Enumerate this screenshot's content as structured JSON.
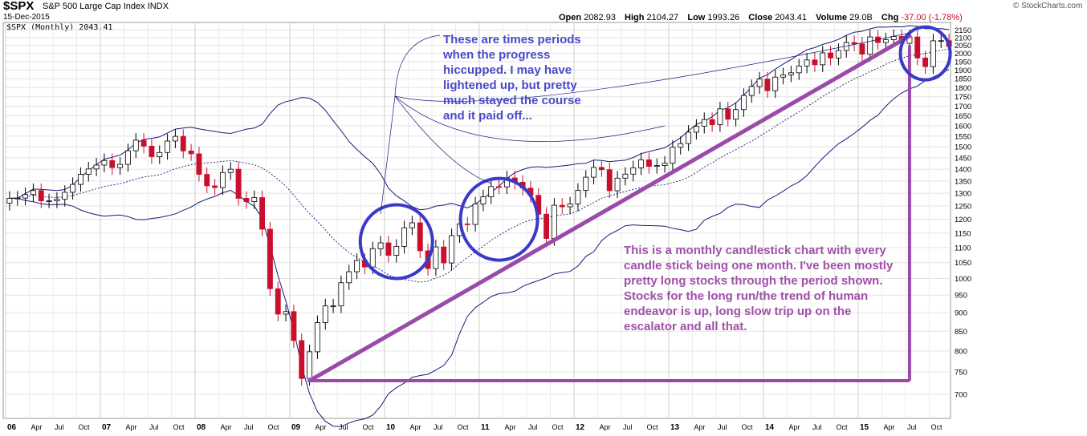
{
  "header": {
    "symbol": "$SPX",
    "description": "S&P 500 Large Cap Index INDX",
    "date": "15-Dec-2015",
    "legend": "$SPX (Monthly) 2043.41",
    "open_label": "Open",
    "open_value": "2082.93",
    "high_label": "High",
    "high_value": "2104.27",
    "low_label": "Low",
    "low_value": "1993.26",
    "close_label": "Close",
    "close_value": "2043.41",
    "volume_label": "Volume",
    "volume_value": "29.0B",
    "chg_label": "Chg",
    "chg_value": "-37.00 (-1.78%)",
    "copyright": "© StockCharts.com"
  },
  "annotations": {
    "top": "These are times periods when the progress hiccupped. I may have lightened up, but pretty much stayed the course and it paid off...",
    "bottom": "This is a monthly candlestick chart with every candle stick being one month. I've been mostly pretty long stocks through the period shown. Stocks for the long run/the trend of human endeavor is up, long slow trip up on the escalator and all that."
  },
  "colors": {
    "up": "#ffffff",
    "down": "#c8102e",
    "band": "#1a1a7a",
    "trend": "#9a4aa8",
    "circle": "#3a3ac8",
    "ann_top": "#4a4ac8",
    "ann_bottom": "#a050a8"
  },
  "chart_data": {
    "type": "candlestick",
    "interval": "monthly",
    "scale": "log",
    "ylim": [
      650,
      2200
    ],
    "y_ticks": [
      700,
      750,
      800,
      850,
      900,
      950,
      1000,
      1050,
      1100,
      1150,
      1200,
      1250,
      1300,
      1350,
      1400,
      1450,
      1500,
      1550,
      1600,
      1650,
      1700,
      1750,
      1800,
      1850,
      1900,
      1950,
      2000,
      2050,
      2100,
      2150
    ],
    "x_ticks": [
      "06",
      "Apr",
      "Jul",
      "Oct",
      "07",
      "Apr",
      "Jul",
      "Oct",
      "08",
      "Apr",
      "Jul",
      "Oct",
      "09",
      "Apr",
      "Jul",
      "Oct",
      "10",
      "Apr",
      "Jul",
      "Oct",
      "11",
      "Apr",
      "Jul",
      "Oct",
      "12",
      "Apr",
      "Jul",
      "Oct",
      "13",
      "Apr",
      "Jul",
      "Oct",
      "14",
      "Apr",
      "Jul",
      "Oct",
      "15",
      "Apr",
      "Jul",
      "Oct"
    ],
    "closes": [
      1280,
      1281,
      1295,
      1311,
      1270,
      1270,
      1276,
      1304,
      1336,
      1378,
      1401,
      1418,
      1438,
      1407,
      1421,
      1482,
      1531,
      1503,
      1455,
      1474,
      1527,
      1549,
      1481,
      1468,
      1378,
      1330,
      1323,
      1386,
      1400,
      1280,
      1267,
      1283,
      1164,
      969,
      896,
      903,
      826,
      735,
      798,
      873,
      919,
      919,
      987,
      1021,
      1057,
      1036,
      1096,
      1116,
      1074,
      1104,
      1169,
      1187,
      1089,
      1031,
      1102,
      1049,
      1141,
      1183,
      1181,
      1258,
      1286,
      1327,
      1326,
      1363,
      1345,
      1321,
      1292,
      1219,
      1131,
      1253,
      1247,
      1258,
      1312,
      1366,
      1408,
      1398,
      1310,
      1362,
      1379,
      1406,
      1441,
      1412,
      1416,
      1426,
      1498,
      1515,
      1569,
      1598,
      1631,
      1606,
      1686,
      1633,
      1682,
      1757,
      1806,
      1848,
      1783,
      1859,
      1872,
      1884,
      1924,
      1960,
      1931,
      2003,
      1972,
      2018,
      2068,
      2059,
      1995,
      2104,
      2068,
      2086,
      2107,
      2063,
      2104,
      1972,
      1920,
      2079,
      2080,
      2043
    ]
  }
}
